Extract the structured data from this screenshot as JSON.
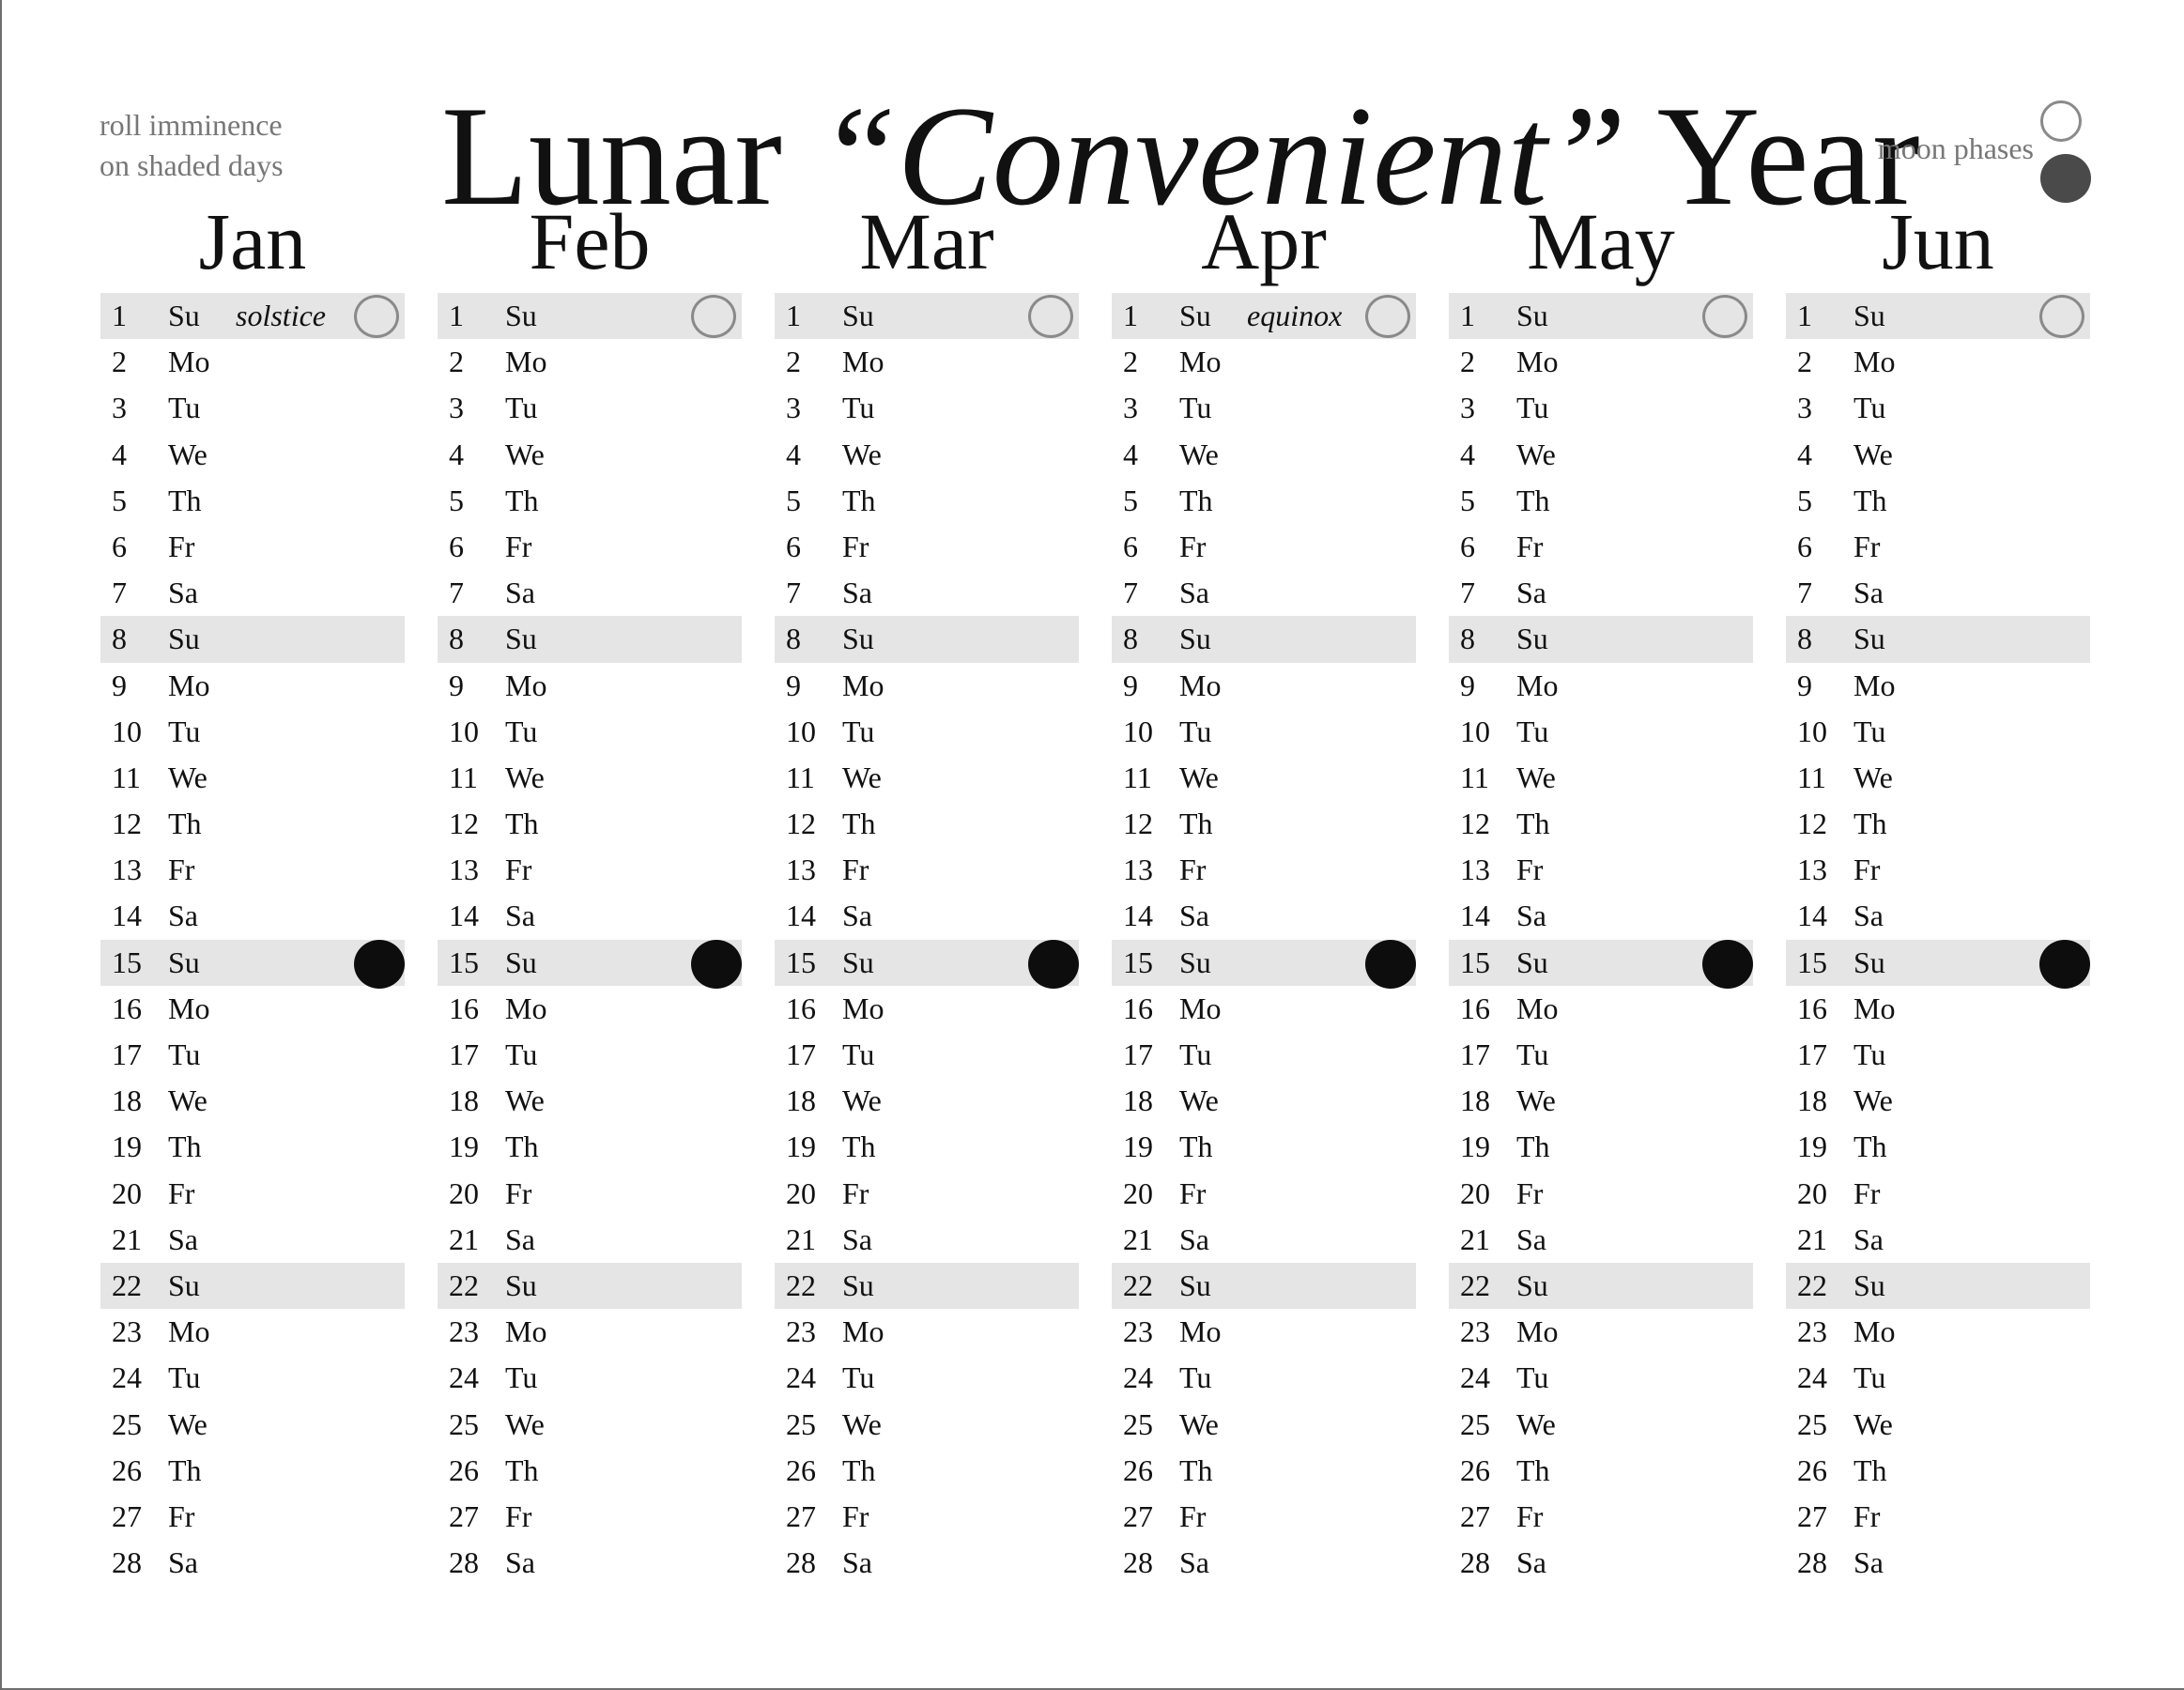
{
  "header": {
    "note_left_line1": "roll imminence",
    "note_left_line2": "on shaded days",
    "title_part1": "Lunar ",
    "title_part2": "“Convenient”",
    "title_part3": " Year",
    "legend_label": "moon phases",
    "legend_icons": [
      "full-moon-icon",
      "new-moon-icon"
    ]
  },
  "colors": {
    "shade": "#e5e5e5",
    "new_moon": "#0d0d0d",
    "full_moon_outline": "#8a8a8a",
    "muted_text": "#777777"
  },
  "weekdays": [
    "Su",
    "Mo",
    "Tu",
    "We",
    "Th",
    "Fr",
    "Sa"
  ],
  "shaded_days": [
    1,
    8,
    15,
    22
  ],
  "full_moon_day": 1,
  "new_moon_day": 15,
  "months": [
    {
      "name": "Jan",
      "note_day": 1,
      "note": "solstice"
    },
    {
      "name": "Feb"
    },
    {
      "name": "Mar"
    },
    {
      "name": "Apr",
      "note_day": 1,
      "note": "equinox"
    },
    {
      "name": "May"
    },
    {
      "name": "Jun"
    }
  ]
}
